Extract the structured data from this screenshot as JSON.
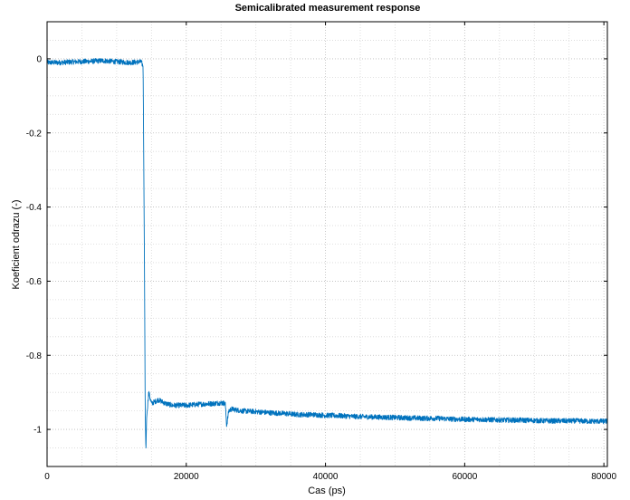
{
  "chart_data": {
    "type": "line",
    "title": "Semicalibrated measurement response",
    "xlabel": "Cas (ps)",
    "ylabel": "Koeficient odrazu (-)",
    "xlim": [
      0,
      80500
    ],
    "ylim": [
      -1.1,
      0.1
    ],
    "xticks": [
      0,
      20000,
      40000,
      60000,
      80000
    ],
    "xtick_labels": [
      "0",
      "20000",
      "40000",
      "60000",
      "80000"
    ],
    "yticks": [
      0,
      -0.2,
      -0.4,
      -0.6,
      -0.8,
      -1
    ],
    "ytick_labels": [
      "0",
      "-0.2",
      "-0.4",
      "-0.6",
      "-0.8",
      "-1"
    ],
    "grid": true,
    "minor_grid": true,
    "series": [
      {
        "name": "",
        "color": "#0072bd",
        "x": [
          0,
          2000,
          4000,
          6000,
          8000,
          10000,
          12000,
          13500,
          13800,
          14000,
          14100,
          14200,
          14300,
          14600,
          15000,
          16000,
          17000,
          18000,
          20000,
          22000,
          24000,
          25000,
          25600,
          25800,
          26100,
          26500,
          28000,
          30000,
          32000,
          34000,
          36000,
          38000,
          40000,
          42000,
          44000,
          46000,
          48000,
          50000,
          52000,
          54000,
          56000,
          58000,
          60000,
          62000,
          64000,
          66000,
          68000,
          70000,
          72000,
          74000,
          76000,
          78000,
          80000,
          80500
        ],
        "y": [
          -0.01,
          -0.01,
          -0.008,
          -0.007,
          -0.005,
          -0.008,
          -0.01,
          -0.008,
          -0.02,
          -0.58,
          -0.95,
          -1.06,
          -0.97,
          -0.9,
          -0.93,
          -0.92,
          -0.93,
          -0.935,
          -0.935,
          -0.932,
          -0.93,
          -0.928,
          -0.93,
          -0.99,
          -0.95,
          -0.945,
          -0.95,
          -0.952,
          -0.955,
          -0.957,
          -0.96,
          -0.96,
          -0.962,
          -0.963,
          -0.965,
          -0.966,
          -0.967,
          -0.968,
          -0.969,
          -0.97,
          -0.97,
          -0.972,
          -0.973,
          -0.973,
          -0.974,
          -0.975,
          -0.975,
          -0.976,
          -0.977,
          -0.977,
          -0.977,
          -0.978,
          -0.978,
          -0.978
        ]
      }
    ]
  }
}
